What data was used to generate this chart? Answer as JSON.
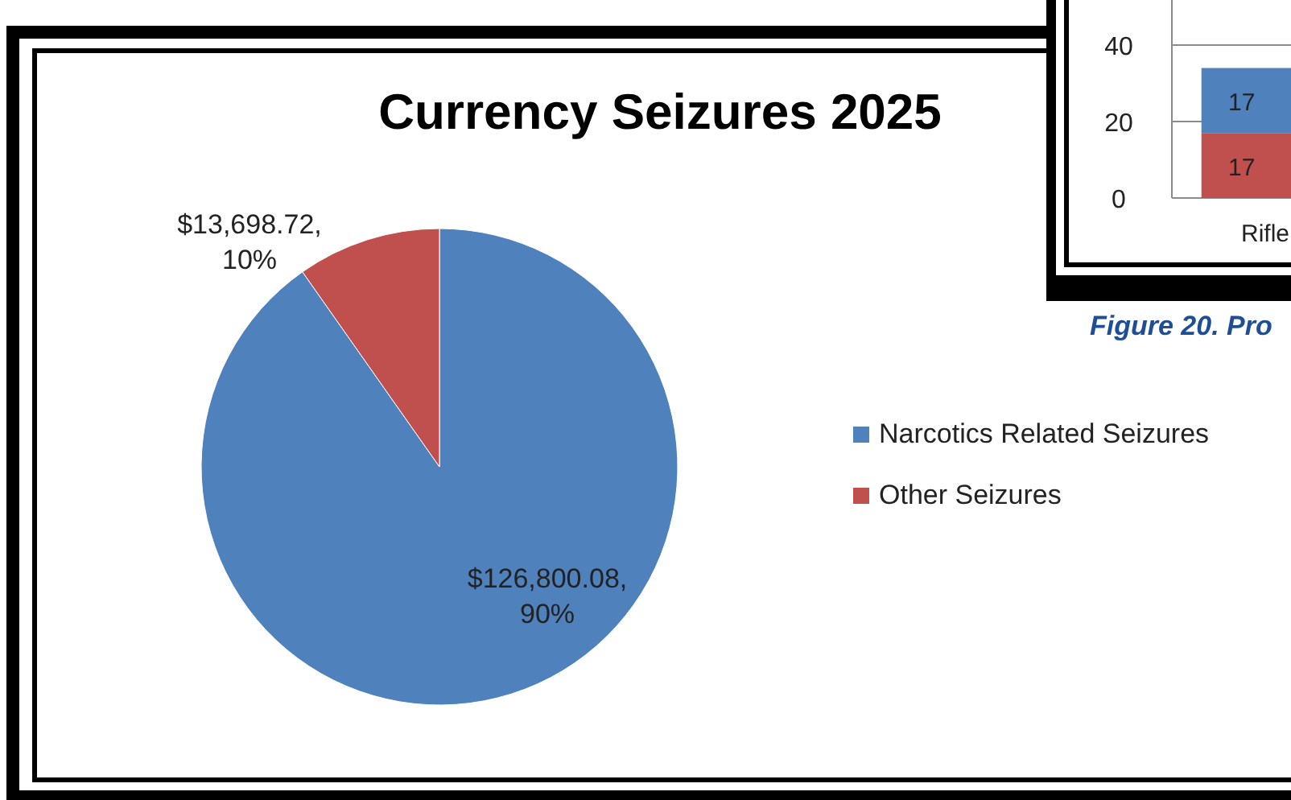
{
  "chart_data": [
    {
      "type": "pie",
      "title": "Currency Seizures 2025",
      "categories": [
        "Narcotics Related Seizures",
        "Other Seizures"
      ],
      "values": [
        126800.08,
        13698.72
      ],
      "colors": [
        "#4f81bd",
        "#c0504d"
      ],
      "value_labels": [
        "$126,800.08, 90%",
        "$13,698.72, 10%"
      ],
      "legend": "right"
    },
    {
      "type": "bar",
      "stacked": true,
      "categories": [
        "Rifle"
      ],
      "series": [
        {
          "color": "#c0504d",
          "values": [
            17
          ]
        },
        {
          "color": "#4f81bd",
          "values": [
            17
          ]
        }
      ],
      "ylim": [
        0,
        52
      ],
      "yticks": [
        0,
        20,
        40
      ],
      "grid": "y",
      "data_labels": true,
      "annotations": [
        "Figure 20. Pro"
      ]
    }
  ]
}
